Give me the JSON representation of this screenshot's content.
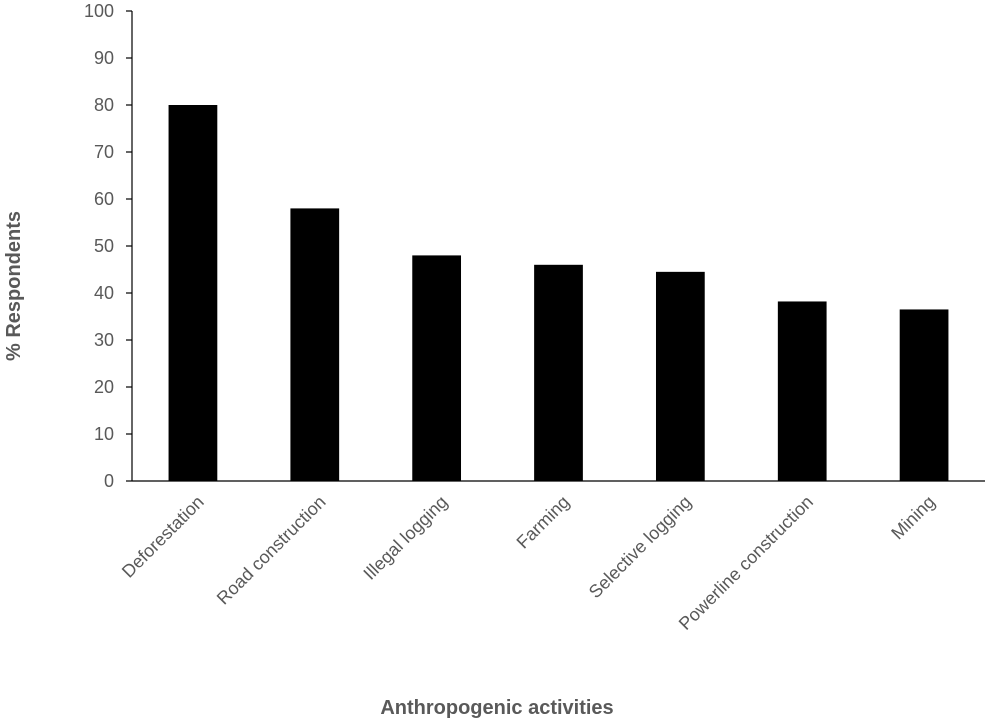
{
  "chart_data": {
    "type": "bar",
    "title": "",
    "xlabel": "Anthropogenic activities",
    "ylabel": "% Respondents",
    "categories": [
      "Deforestation",
      "Road construction",
      "Illegal logging",
      "Farming",
      "Selective logging",
      "Powerline construction",
      "Mining"
    ],
    "values": [
      80,
      58,
      48,
      46,
      44.5,
      38.2,
      36.5
    ],
    "ylim": [
      0,
      100
    ],
    "yticks": [
      "0",
      "10",
      "20",
      "30",
      "40",
      "50",
      "60",
      "70",
      "80",
      "90",
      "100"
    ],
    "grid": false,
    "legend": "none",
    "bar_color": "#000000"
  }
}
